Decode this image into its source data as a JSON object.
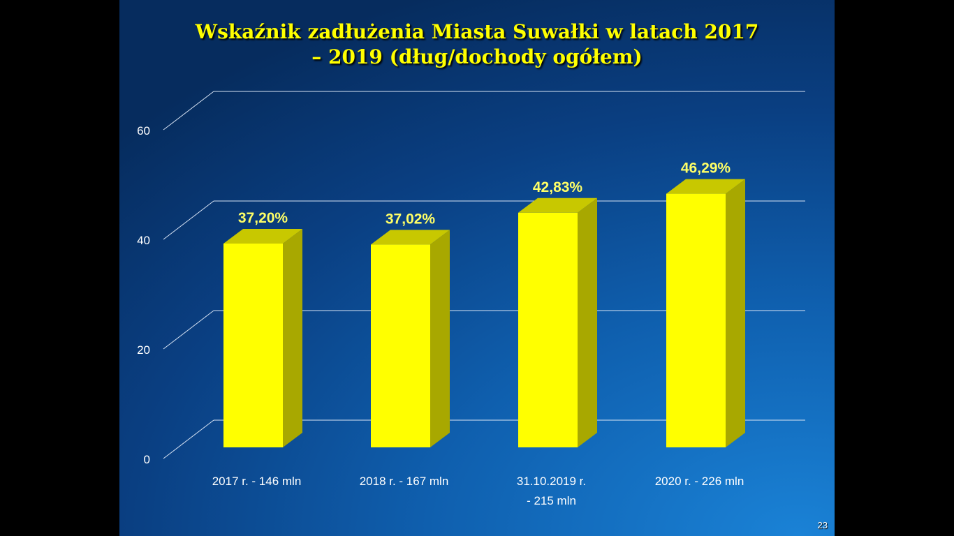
{
  "slide": {
    "title_line1": "Wskaźnik zadłużenia Miasta Suwałki w latach 2017",
    "title_line2": "– 2019 (dług/dochody ogółem)",
    "page_number": "23"
  },
  "chart_data": {
    "type": "bar",
    "title": "Wskaźnik zadłużenia Miasta Suwałki w latach 2017 – 2019 (dług/dochody ogółem)",
    "categories": [
      [
        "2017 r. - 146 mln"
      ],
      [
        "2018 r. - 167 mln"
      ],
      [
        "31.10.2019 r.",
        "- 215 mln"
      ],
      [
        "2020 r. -  226 mln"
      ]
    ],
    "values": [
      37.2,
      37.02,
      42.83,
      46.29
    ],
    "data_labels": [
      "37,20%",
      "37,02%",
      "42,83%",
      "46,29%"
    ],
    "ylim": [
      0,
      60
    ],
    "yticks": [
      0,
      20,
      40,
      60
    ],
    "grid": true,
    "style": "3d-column",
    "colors": {
      "bar_front": "#ffff00",
      "bar_side": "#a8a800",
      "bar_top": "#c8c800",
      "label": "#ffff66",
      "axis_text": "#ffffff",
      "grid": "#d8e4f4"
    }
  }
}
